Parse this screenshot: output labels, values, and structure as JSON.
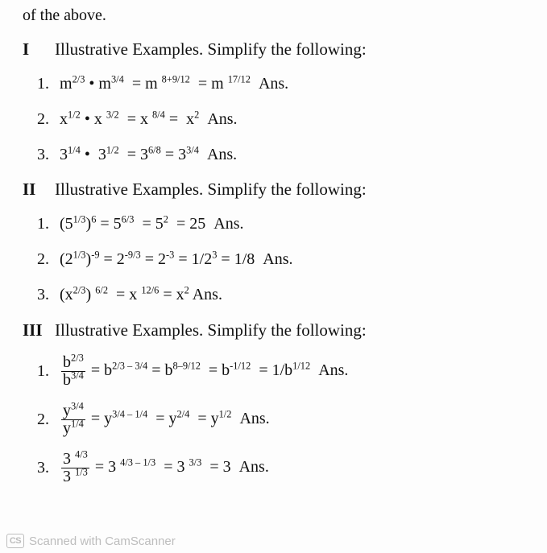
{
  "top_fragment": "of the above.",
  "sections": [
    {
      "label": "I",
      "title": "Illustrative Examples. Simplify the following:",
      "items": [
        {
          "html": "m<sup>2/3</sup> • m<sup>3/4</sup> &nbsp;= m <sup>8+9/12</sup> &nbsp;= m <sup>17/12</sup> &nbsp;Ans."
        },
        {
          "html": "x<sup>1/2</sup> • x <sup>3/2</sup> &nbsp;= x <sup>8/4</sup> = &nbsp;x<sup>2</sup> &nbsp;Ans."
        },
        {
          "html": "3<sup>1/4</sup> • &nbsp;3<sup>1/2</sup> &nbsp;= 3<sup>6/8</sup> = 3<sup>3/4</sup> &nbsp;Ans."
        }
      ]
    },
    {
      "label": "II",
      "title": "Illustrative Examples. Simplify the following:",
      "items": [
        {
          "html": "(5<sup>1/3</sup>)<sup>6</sup> = 5<sup>6/3</sup> &nbsp;= 5<sup>2</sup> &nbsp;= 25 &nbsp;Ans."
        },
        {
          "html": "(2<sup>1/3</sup>)<sup>-9</sup> = 2<sup>-9/3</sup> = 2<sup>-3</sup> = 1/2<sup>3</sup> = 1/8 &nbsp;Ans."
        },
        {
          "html": "(x<sup>2/3</sup>) <sup>6/2</sup> &nbsp;= x <sup>12/6</sup> = x<sup>2</sup> Ans."
        }
      ]
    },
    {
      "label": "III",
      "title": "Illustrative Examples. Simplify the following:",
      "items": [
        {
          "html": "<span class=\"frac\"><span class=\"num\">b<sup>2/3</sup></span><span class=\"den\">b<sup>3/4</sup></span></span> = b<sup>2/3 – 3/4</sup> = b<sup>8–9/12</sup> &nbsp;= b<sup>-1/12</sup> &nbsp;= 1/b<sup>1/12</sup> &nbsp;Ans."
        },
        {
          "html": "<span class=\"frac\"><span class=\"num\">y<sup>3/4</sup></span><span class=\"den\">y<sup>1/4</sup></span></span> = y<sup>3/4 – 1/4</sup> &nbsp;= y<sup>2/4</sup> &nbsp;= y<sup>1/2</sup> &nbsp;Ans."
        },
        {
          "html": "<span class=\"frac\"><span class=\"num\">3 <sup>4/3</sup></span><span class=\"den\">3 <sup>1/3</sup></span></span> = 3 <sup>4/3 – 1/3</sup> &nbsp;= 3 <sup>3/3</sup> &nbsp;= 3 &nbsp;Ans."
        }
      ]
    }
  ],
  "footer": {
    "badge": "CS",
    "text": "Scanned with CamScanner"
  }
}
